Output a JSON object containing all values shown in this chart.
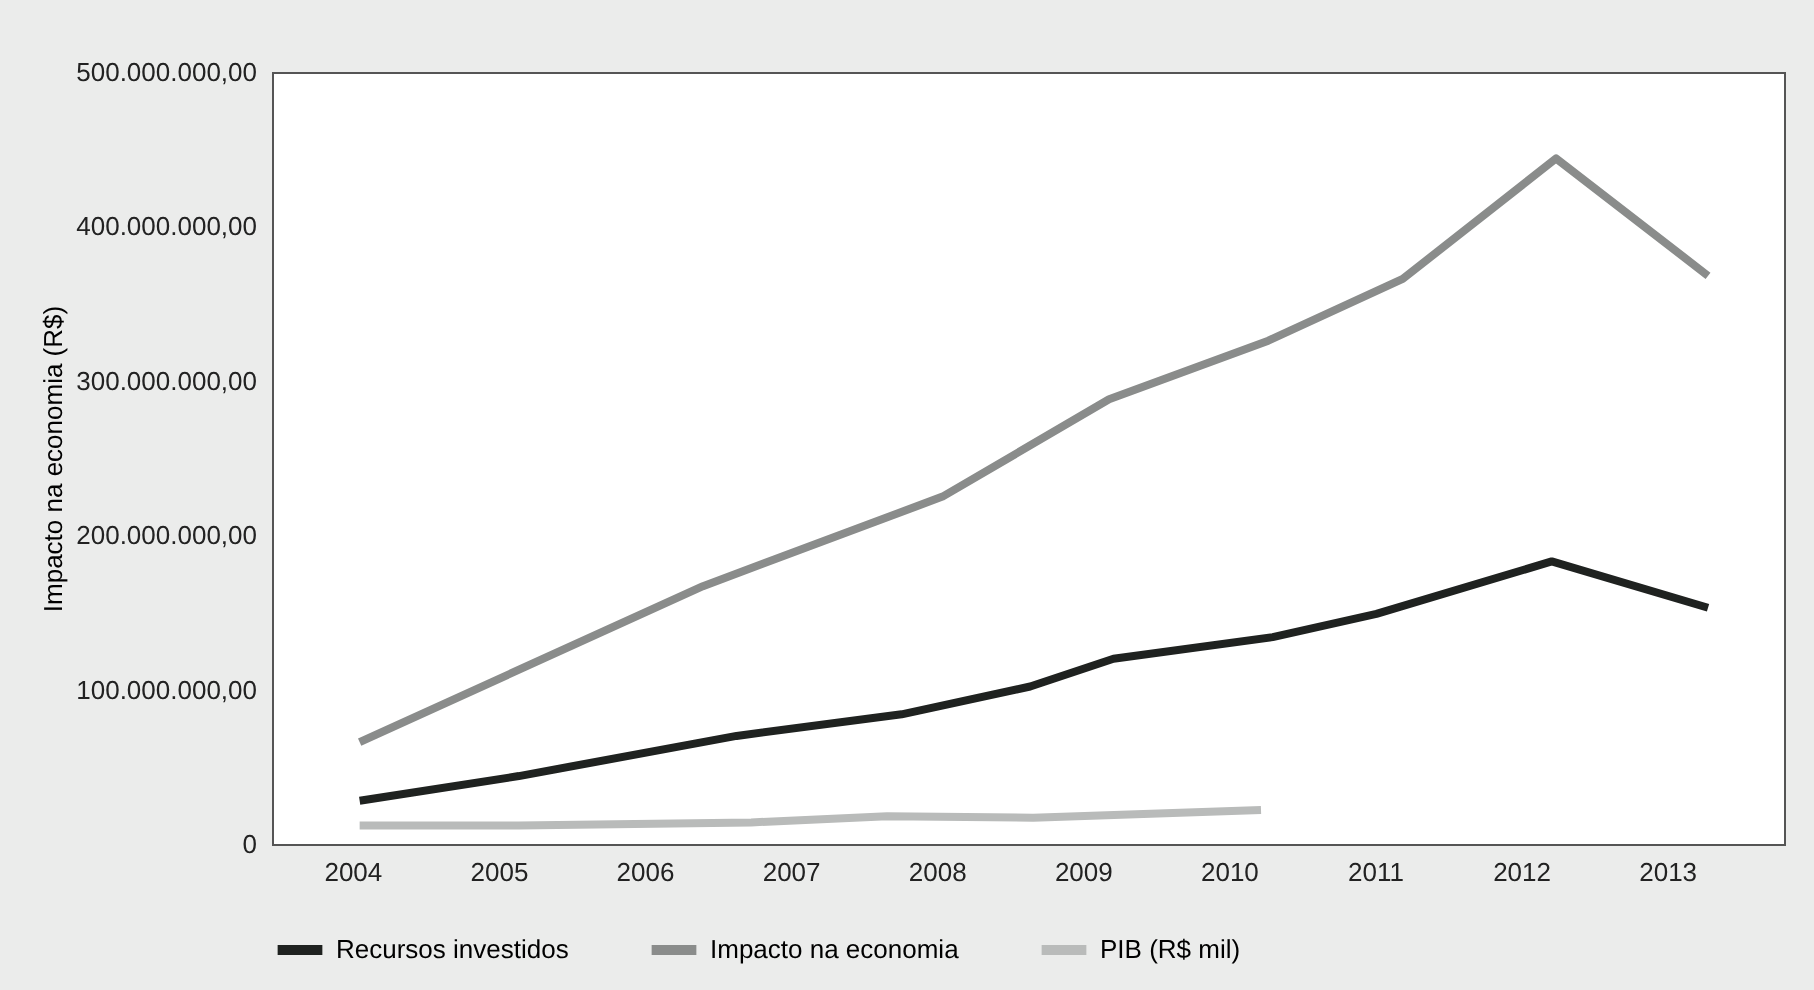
{
  "chart_data": {
    "type": "line",
    "ylabel": "Impacto na economia (R$)",
    "xlim": [
      2003.45,
      2013.8
    ],
    "xticks": [
      2004,
      2005,
      2006,
      2007,
      2008,
      2009,
      2010,
      2011,
      2012,
      2013
    ],
    "ylim": [
      0,
      500000000
    ],
    "yticks": [
      {
        "value": 0,
        "label": "0"
      },
      {
        "value": 100000000,
        "label": "100.000.000,00"
      },
      {
        "value": 200000000,
        "label": "200.000.000,00"
      },
      {
        "value": 300000000,
        "label": "300.000.000,00"
      },
      {
        "value": 400000000,
        "label": "400.000.000,00"
      },
      {
        "value": 500000000,
        "label": "500.000.000,00"
      }
    ],
    "grid": false,
    "legend": "bottom",
    "marker": "none",
    "line_style": "solid",
    "series": [
      {
        "name": "Recursos investidos",
        "color": "#1f2220",
        "x": [
          2004.05,
          2005.14,
          2006.63,
          2007.76,
          2008.64,
          2009.21,
          2010.3,
          2011.01,
          2012.21,
          2013.28
        ],
        "values": [
          28000000,
          44000000,
          70000000,
          84000000,
          102000000,
          120000000,
          134000000,
          149000000,
          183000000,
          153000000
        ]
      },
      {
        "name": "Impacto na economia",
        "color": "#8a8c8b",
        "x": [
          2004.05,
          2006.4,
          2008.04,
          2009.18,
          2010.27,
          2011.19,
          2012.24,
          2013.28
        ],
        "values": [
          66000000,
          167000000,
          225000000,
          288000000,
          326000000,
          366000000,
          444000000,
          368000000
        ]
      },
      {
        "name": "PIB (R$ mil)",
        "color": "#b9bbba",
        "x": [
          2004.05,
          2005.14,
          2006.73,
          2007.66,
          2008.66,
          2010.22
        ],
        "values": [
          12000000,
          12000000,
          14000000,
          18000000,
          17000000,
          22000000
        ]
      }
    ]
  }
}
